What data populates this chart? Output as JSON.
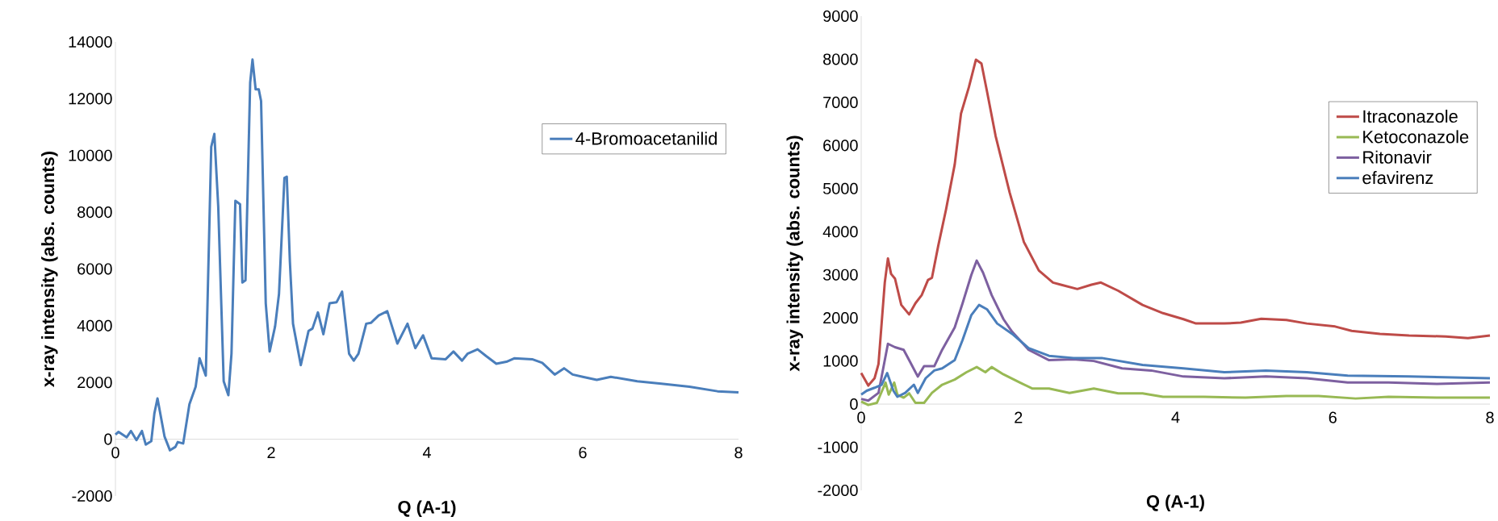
{
  "chart_data": [
    {
      "type": "line",
      "xlabel": "Q (A-1)",
      "ylabel": "x-ray intensity (abs. counts)",
      "xlim": [
        0,
        8
      ],
      "xticks": [
        0,
        2,
        4,
        6,
        8
      ],
      "ylim": [
        -2000,
        14000
      ],
      "yticks": [
        -2000,
        0,
        2000,
        4000,
        6000,
        8000,
        10000,
        12000,
        14000
      ],
      "legend": "top right",
      "series": [
        {
          "name": "4-Bromoacetanilid",
          "color": "#4a7ebb",
          "x": [
            0,
            0.04,
            0.145,
            0.2,
            0.27,
            0.34,
            0.39,
            0.46,
            0.5,
            0.54,
            0.63,
            0.7,
            0.77,
            0.8,
            0.87,
            0.95,
            1.03,
            1.08,
            1.16,
            1.23,
            1.27,
            1.32,
            1.39,
            1.45,
            1.49,
            1.54,
            1.6,
            1.63,
            1.67,
            1.73,
            1.76,
            1.8,
            1.84,
            1.87,
            1.93,
            1.98,
            2.05,
            2.1,
            2.17,
            2.2,
            2.24,
            2.28,
            2.38,
            2.48,
            2.53,
            2.6,
            2.67,
            2.75,
            2.84,
            2.91,
            3.0,
            3.06,
            3.12,
            3.22,
            3.28,
            3.38,
            3.49,
            3.62,
            3.75,
            3.85,
            3.95,
            4.06,
            4.24,
            4.34,
            4.45,
            4.52,
            4.65,
            4.76,
            4.89,
            5.02,
            5.12,
            5.35,
            5.48,
            5.64,
            5.76,
            5.87,
            6.0,
            6.18,
            6.36,
            6.7,
            7.01,
            7.37,
            7.73,
            8.0
          ],
          "values": [
            160,
            260,
            70,
            290,
            -30,
            290,
            -190,
            -70,
            910,
            1440,
            100,
            -390,
            -270,
            -100,
            -150,
            1230,
            1850,
            2850,
            2240,
            10300,
            10760,
            8200,
            2040,
            1550,
            3010,
            8400,
            8280,
            5520,
            5600,
            12570,
            13380,
            12330,
            12330,
            11920,
            4790,
            3090,
            3980,
            5120,
            9210,
            9250,
            6250,
            4070,
            2610,
            3820,
            3900,
            4470,
            3700,
            4790,
            4830,
            5200,
            3010,
            2770,
            3010,
            4070,
            4100,
            4360,
            4510,
            3370,
            4070,
            3210,
            3660,
            2850,
            2820,
            3090,
            2770,
            3010,
            3170,
            2930,
            2660,
            2730,
            2850,
            2820,
            2690,
            2280,
            2500,
            2280,
            2200,
            2090,
            2200,
            2040,
            1960,
            1850,
            1690,
            1650
          ]
        }
      ]
    },
    {
      "type": "line",
      "xlabel": "Q (A-1)",
      "ylabel": "x-ray intensity (abs. counts)",
      "xlim": [
        0,
        8
      ],
      "xticks": [
        0,
        2,
        4,
        6,
        8
      ],
      "ylim": [
        -2000,
        9000
      ],
      "yticks": [
        -2000,
        -1000,
        0,
        1000,
        2000,
        3000,
        4000,
        5000,
        6000,
        7000,
        8000,
        9000
      ],
      "legend": "top right",
      "series": [
        {
          "name": "Itraconazole",
          "color": "#be4b48",
          "x": [
            0,
            0.09,
            0.17,
            0.22,
            0.3,
            0.34,
            0.38,
            0.43,
            0.51,
            0.61,
            0.69,
            0.77,
            0.85,
            0.9,
            0.98,
            1.08,
            1.19,
            1.27,
            1.37,
            1.46,
            1.53,
            1.6,
            1.71,
            1.89,
            2.07,
            2.26,
            2.44,
            2.54,
            2.75,
            2.93,
            3.05,
            3.27,
            3.58,
            3.84,
            4.1,
            4.26,
            4.62,
            4.83,
            5.09,
            5.41,
            5.67,
            6.03,
            6.24,
            6.6,
            6.97,
            7.44,
            7.72,
            8
          ],
          "values": [
            720,
            430,
            600,
            930,
            2820,
            3380,
            3020,
            2910,
            2300,
            2080,
            2340,
            2530,
            2880,
            2930,
            3670,
            4520,
            5560,
            6740,
            7350,
            7990,
            7900,
            7260,
            6220,
            4900,
            3760,
            3100,
            2820,
            2770,
            2670,
            2770,
            2820,
            2630,
            2300,
            2110,
            1970,
            1870,
            1870,
            1890,
            1980,
            1950,
            1870,
            1800,
            1700,
            1630,
            1590,
            1570,
            1530,
            1590
          ]
        },
        {
          "name": "Ketoconazole",
          "color": "#98b954",
          "x": [
            0,
            0.09,
            0.2,
            0.31,
            0.35,
            0.42,
            0.46,
            0.54,
            0.61,
            0.69,
            0.8,
            0.9,
            1.03,
            1.19,
            1.34,
            1.47,
            1.58,
            1.66,
            1.81,
            2.02,
            2.18,
            2.39,
            2.65,
            2.96,
            3.27,
            3.58,
            3.84,
            4.36,
            4.89,
            5.41,
            5.82,
            6.29,
            6.71,
            7.33,
            8
          ],
          "values": [
            60,
            -20,
            30,
            500,
            220,
            500,
            220,
            150,
            250,
            30,
            30,
            260,
            450,
            570,
            740,
            860,
            740,
            860,
            690,
            500,
            360,
            360,
            260,
            360,
            250,
            250,
            170,
            170,
            150,
            190,
            190,
            130,
            170,
            150,
            150
          ]
        },
        {
          "name": "Ritonavir",
          "color": "#7d60a0",
          "x": [
            0,
            0.09,
            0.22,
            0.34,
            0.43,
            0.54,
            0.61,
            0.72,
            0.8,
            0.93,
            1.03,
            1.19,
            1.29,
            1.4,
            1.47,
            1.55,
            1.66,
            1.81,
            1.92,
            2.13,
            2.39,
            2.7,
            2.96,
            3.32,
            3.69,
            4.1,
            4.62,
            5.15,
            5.67,
            6.19,
            6.71,
            7.33,
            8
          ],
          "values": [
            120,
            80,
            260,
            1400,
            1320,
            1260,
            1020,
            640,
            880,
            880,
            1260,
            1780,
            2340,
            2990,
            3330,
            3050,
            2530,
            1970,
            1680,
            1260,
            1020,
            1040,
            1000,
            830,
            780,
            640,
            600,
            640,
            600,
            500,
            500,
            470,
            500
          ]
        },
        {
          "name": "efavirenz",
          "color": "#4a7ebb",
          "x": [
            0,
            0.07,
            0.17,
            0.26,
            0.33,
            0.41,
            0.46,
            0.56,
            0.67,
            0.72,
            0.82,
            0.93,
            1.03,
            1.19,
            1.29,
            1.4,
            1.5,
            1.6,
            1.73,
            1.92,
            2.13,
            2.39,
            2.7,
            3.06,
            3.58,
            4.1,
            4.62,
            5.15,
            5.67,
            6.19,
            6.97,
            8
          ],
          "values": [
            220,
            310,
            380,
            450,
            720,
            310,
            170,
            260,
            450,
            260,
            600,
            780,
            830,
            1020,
            1490,
            2060,
            2300,
            2200,
            1870,
            1630,
            1300,
            1120,
            1070,
            1070,
            910,
            830,
            740,
            780,
            740,
            660,
            640,
            600
          ]
        }
      ]
    }
  ]
}
